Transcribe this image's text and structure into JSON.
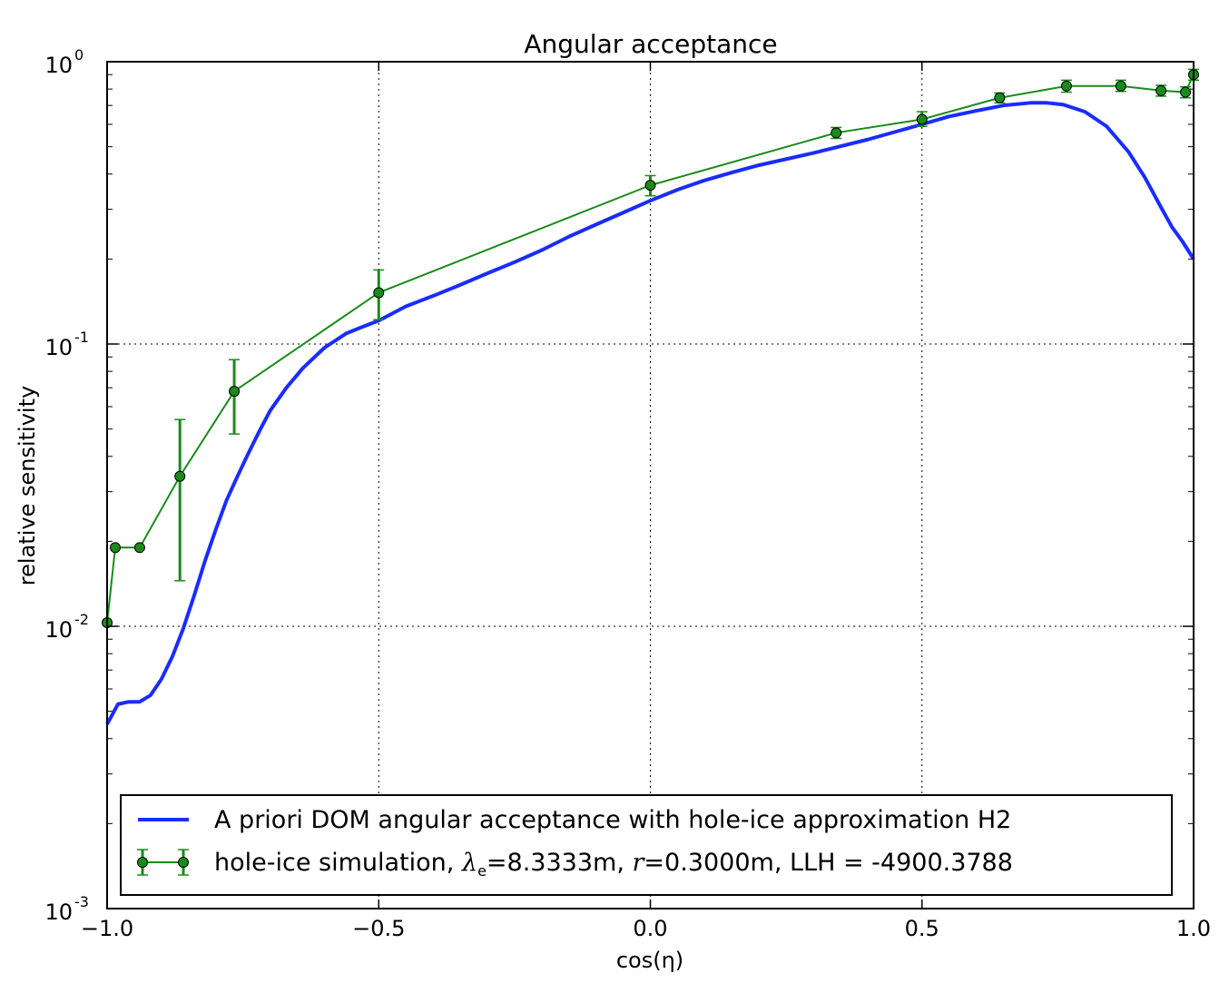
{
  "chart_data": {
    "type": "line",
    "title": "Angular acceptance",
    "xlabel": "cos(η)",
    "ylabel": "relative sensitivity",
    "xlim": [
      -1.0,
      1.0
    ],
    "ylim": [
      0.001,
      1.0
    ],
    "yscale": "log",
    "grid": true,
    "legend_position": "lower center",
    "x_ticks": [
      "−1.0",
      "−0.5",
      "0.0",
      "0.5",
      "1.0"
    ],
    "x_tick_values": [
      -1.0,
      -0.5,
      0.0,
      0.5,
      1.0
    ],
    "y_ticks": [
      {
        "value": 1.0,
        "base": "10",
        "exp": "0"
      },
      {
        "value": 0.1,
        "base": "10",
        "exp": "-1"
      },
      {
        "value": 0.01,
        "base": "10",
        "exp": "-2"
      },
      {
        "value": 0.001,
        "base": "10",
        "exp": "-3"
      }
    ],
    "series": [
      {
        "name": "A priori DOM angular acceptance with hole-ice approximation H2",
        "color": "#1a2cff",
        "style": "line",
        "x": [
          -1.0,
          -0.98,
          -0.96,
          -0.94,
          -0.92,
          -0.9,
          -0.88,
          -0.86,
          -0.84,
          -0.82,
          -0.8,
          -0.78,
          -0.76,
          -0.74,
          -0.72,
          -0.7,
          -0.67,
          -0.64,
          -0.6,
          -0.56,
          -0.53,
          -0.5,
          -0.45,
          -0.4,
          -0.35,
          -0.3,
          -0.25,
          -0.2,
          -0.15,
          -0.1,
          -0.05,
          0.0,
          0.05,
          0.1,
          0.15,
          0.2,
          0.3,
          0.4,
          0.5,
          0.55,
          0.6,
          0.65,
          0.7,
          0.73,
          0.76,
          0.8,
          0.84,
          0.88,
          0.91,
          0.94,
          0.96,
          0.98,
          1.0
        ],
        "y": [
          0.0045,
          0.0053,
          0.0054,
          0.0054,
          0.0057,
          0.0065,
          0.0078,
          0.0098,
          0.0128,
          0.017,
          0.022,
          0.028,
          0.034,
          0.041,
          0.049,
          0.058,
          0.07,
          0.082,
          0.097,
          0.109,
          0.115,
          0.121,
          0.136,
          0.148,
          0.162,
          0.178,
          0.195,
          0.215,
          0.24,
          0.265,
          0.292,
          0.322,
          0.352,
          0.38,
          0.405,
          0.43,
          0.475,
          0.53,
          0.6,
          0.64,
          0.67,
          0.7,
          0.715,
          0.715,
          0.705,
          0.665,
          0.59,
          0.48,
          0.39,
          0.305,
          0.26,
          0.23,
          0.2
        ]
      },
      {
        "name": "hole-ice simulation, λe=8.3333m, r=0.3000m, LLH = -4900.3788",
        "legend_parts": {
          "prefix": "hole-ice simulation, ",
          "lambda": "λ",
          "lambda_sub": "e",
          "mid1": "=8.3333m, ",
          "r": "r",
          "rest": "=0.3000m, LLH = -4900.3788"
        },
        "color": "#1a8a1a",
        "style": "line+markers+errorbars",
        "x": [
          -1.0,
          -0.985,
          -0.94,
          -0.866,
          -0.766,
          -0.5,
          0.0,
          0.342,
          0.5,
          0.643,
          0.766,
          0.866,
          0.94,
          0.985,
          1.0
        ],
        "y": [
          0.0103,
          0.019,
          0.019,
          0.034,
          0.068,
          0.152,
          0.365,
          0.56,
          0.625,
          0.745,
          0.82,
          0.82,
          0.79,
          0.78,
          0.9
        ],
        "y_err_low": [
          0.0103,
          0.019,
          0.019,
          0.0145,
          0.048,
          0.122,
          0.335,
          0.535,
          0.59,
          0.715,
          0.78,
          0.785,
          0.755,
          0.745,
          0.86
        ],
        "y_err_high": [
          0.0103,
          0.019,
          0.019,
          0.054,
          0.088,
          0.183,
          0.395,
          0.585,
          0.665,
          0.775,
          0.86,
          0.86,
          0.825,
          0.815,
          0.94
        ]
      }
    ]
  }
}
